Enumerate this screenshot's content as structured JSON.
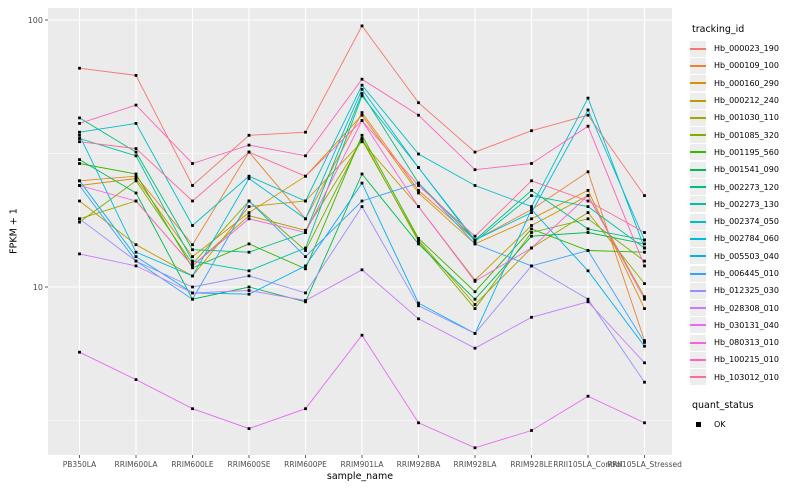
{
  "chart_data": {
    "type": "line",
    "title": "",
    "xlabel": "sample_name",
    "ylabel": "FPKM + 1",
    "yscale": "log10",
    "ylim": [
      2.35,
      111
    ],
    "grid": true,
    "legend_position": "right",
    "panel_bg": "#EBEBEB",
    "grid_color": "#FFFFFF",
    "tick_label_color": "#4D4D4D",
    "point_color": "#000000",
    "yticks": [
      {
        "value": 100,
        "label": "100"
      },
      {
        "value": 10,
        "label": "10"
      }
    ],
    "minor_yticks": [
      31.62,
      3.162
    ],
    "categories": [
      "PB350LA",
      "RRIM600LA",
      "RRIM600LE",
      "RRIM600SE",
      "RRIM600PE",
      "RRIM901LA",
      "RRIM928BA",
      "RRIM928LA",
      "RRIM928LE",
      "RRII105LA_Control",
      "RRII105LA_Stressed"
    ],
    "legend": {
      "series_title": "tracking_id",
      "quant_title": "quant_status",
      "quant_items": [
        {
          "label": "OK",
          "marker": "black-square"
        }
      ]
    },
    "series": [
      {
        "name": "Hb_000023_190",
        "color": "#F8766D",
        "values": [
          66,
          62,
          24,
          37,
          38,
          95,
          49,
          32,
          38.5,
          44,
          22
        ]
      },
      {
        "name": "Hb_000109_100",
        "color": "#EA8331",
        "values": [
          25,
          26,
          14.4,
          32,
          18,
          45,
          23,
          15,
          19.5,
          27,
          6.3
        ]
      },
      {
        "name": "Hb_000160_290",
        "color": "#D89000",
        "values": [
          24,
          25.5,
          13,
          19,
          26,
          44,
          22.5,
          14.5,
          18,
          23,
          8.3
        ]
      },
      {
        "name": "Hb_000212_240",
        "color": "#C09B00",
        "values": [
          21,
          14.4,
          11,
          20,
          21,
          35,
          20,
          10.6,
          17,
          22,
          9.2
        ]
      },
      {
        "name": "Hb_001030_110",
        "color": "#A3A500",
        "values": [
          18,
          21,
          12,
          18.5,
          16.3,
          35.5,
          15,
          8.6,
          14,
          19,
          10.3
        ]
      },
      {
        "name": "Hb_001085_320",
        "color": "#7CAE00",
        "values": [
          17.5,
          25,
          12.2,
          21,
          13.7,
          36,
          14.8,
          8.3,
          16,
          18,
          12.5
        ]
      },
      {
        "name": "Hb_001195_560",
        "color": "#39B600",
        "values": [
          29,
          26.5,
          11.8,
          14.5,
          11.7,
          37,
          15.2,
          9.6,
          16.5,
          13.7,
          13.5
        ]
      },
      {
        "name": "Hb_001541_090",
        "color": "#00BB4E",
        "values": [
          30,
          22.5,
          9,
          10,
          8.8,
          26.5,
          14.5,
          9,
          15.5,
          16,
          14.5
        ]
      },
      {
        "name": "Hb_002273_120",
        "color": "#00BF7D",
        "values": [
          43,
          32,
          13.8,
          13.5,
          16,
          53,
          24.5,
          15,
          23,
          16.5,
          15
        ]
      },
      {
        "name": "Hb_002273_130",
        "color": "#00C1A3",
        "values": [
          36,
          31,
          12.5,
          11.5,
          14,
          52,
          28,
          14.8,
          22,
          20,
          14
        ]
      },
      {
        "name": "Hb_002374_050",
        "color": "#00BFC4",
        "values": [
          38,
          41,
          17,
          26,
          21,
          57,
          31.5,
          24,
          20,
          51,
          14
        ]
      },
      {
        "name": "Hb_002784_060",
        "color": "#00BAE0",
        "values": [
          37,
          13.5,
          11,
          25.5,
          18,
          55,
          28,
          15,
          19,
          46,
          15
        ]
      },
      {
        "name": "Hb_005503_040",
        "color": "#00B0F6",
        "values": [
          25,
          13,
          9.5,
          9.4,
          12,
          24.5,
          8.7,
          6.7,
          19.5,
          11.5,
          6
        ]
      },
      {
        "name": "Hb_006445_010",
        "color": "#35A2FF",
        "values": [
          24,
          12.5,
          9,
          21,
          13,
          21,
          24.5,
          14.5,
          12,
          13.7,
          6.2
        ]
      },
      {
        "name": "Hb_012325_030",
        "color": "#9590FF",
        "values": [
          18,
          12.5,
          10,
          11,
          9.5,
          20,
          8.5,
          6.7,
          12,
          9,
          4.4
        ]
      },
      {
        "name": "Hb_028308_010",
        "color": "#C77CFF",
        "values": [
          13.3,
          12,
          9.5,
          9.7,
          8.9,
          11.6,
          7.6,
          5.9,
          7.7,
          8.8,
          5.2
        ]
      },
      {
        "name": "Hb_030131_040",
        "color": "#E76BF3",
        "values": [
          5.7,
          4.5,
          3.5,
          2.95,
          3.5,
          6.6,
          3.1,
          2.5,
          2.9,
          3.9,
          3.1
        ]
      },
      {
        "name": "Hb_080313_010",
        "color": "#FA62DB",
        "values": [
          24,
          21,
          12,
          18,
          16,
          42,
          20,
          10.5,
          14,
          22,
          9
        ]
      },
      {
        "name": "Hb_100215_010",
        "color": "#FF62BC",
        "values": [
          41,
          48,
          29,
          34,
          31,
          60,
          44,
          27.5,
          29,
          40,
          12
        ]
      },
      {
        "name": "Hb_103012_010",
        "color": "#FF6A98",
        "values": [
          35,
          33,
          21,
          32,
          26,
          42,
          24,
          15.5,
          25,
          21,
          16
        ]
      }
    ]
  }
}
